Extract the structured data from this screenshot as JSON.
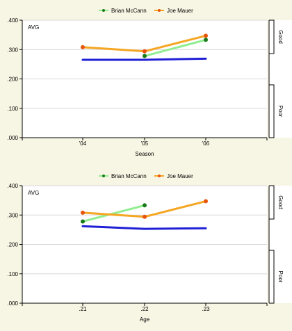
{
  "colors": {
    "background": "#f7f6e4",
    "plot_background": "#ffffff",
    "grid": "#d8d8d8",
    "axis": "#000000",
    "mccann_line": "#90ee90",
    "mccann_marker": "#1a7a1a",
    "mauer_line": "#f5a623",
    "mauer_marker": "#e8540c",
    "average_line": "#1f1fd6"
  },
  "chart_data": [
    {
      "type": "line",
      "stat_label": "AVG",
      "xlabel": "Season",
      "categories": [
        "'04",
        "'05",
        "'06"
      ],
      "ylim": [
        0,
        0.4
      ],
      "yticks": [
        ".000",
        ".100",
        ".200",
        ".300",
        ".400"
      ],
      "grid": true,
      "legend": "top-center",
      "scale_labels": {
        "good": "Good",
        "poor": "Poor"
      },
      "series": [
        {
          "name": "Brian McCann",
          "color_key": "mccann",
          "values": [
            null,
            0.278,
            0.333
          ]
        },
        {
          "name": "Joe Mauer",
          "color_key": "mauer",
          "values": [
            0.308,
            0.294,
            0.347
          ]
        },
        {
          "name": "",
          "color_key": "average",
          "values": [
            0.265,
            0.265,
            0.269
          ]
        }
      ]
    },
    {
      "type": "line",
      "stat_label": "AVG",
      "xlabel": "Age",
      "categories": [
        ".21",
        ".22",
        ".23"
      ],
      "ylim": [
        0,
        0.4
      ],
      "yticks": [
        ".000",
        ".100",
        ".200",
        ".300",
        ".400"
      ],
      "grid": true,
      "legend": "top-center",
      "scale_labels": {
        "good": "Good",
        "poor": "Poor"
      },
      "series": [
        {
          "name": "Brian McCann",
          "color_key": "mccann",
          "values": [
            0.278,
            0.333,
            null
          ]
        },
        {
          "name": "Joe Mauer",
          "color_key": "mauer",
          "values": [
            0.308,
            0.294,
            0.347
          ]
        },
        {
          "name": "",
          "color_key": "average",
          "values": [
            0.262,
            0.253,
            0.255
          ]
        }
      ]
    }
  ]
}
